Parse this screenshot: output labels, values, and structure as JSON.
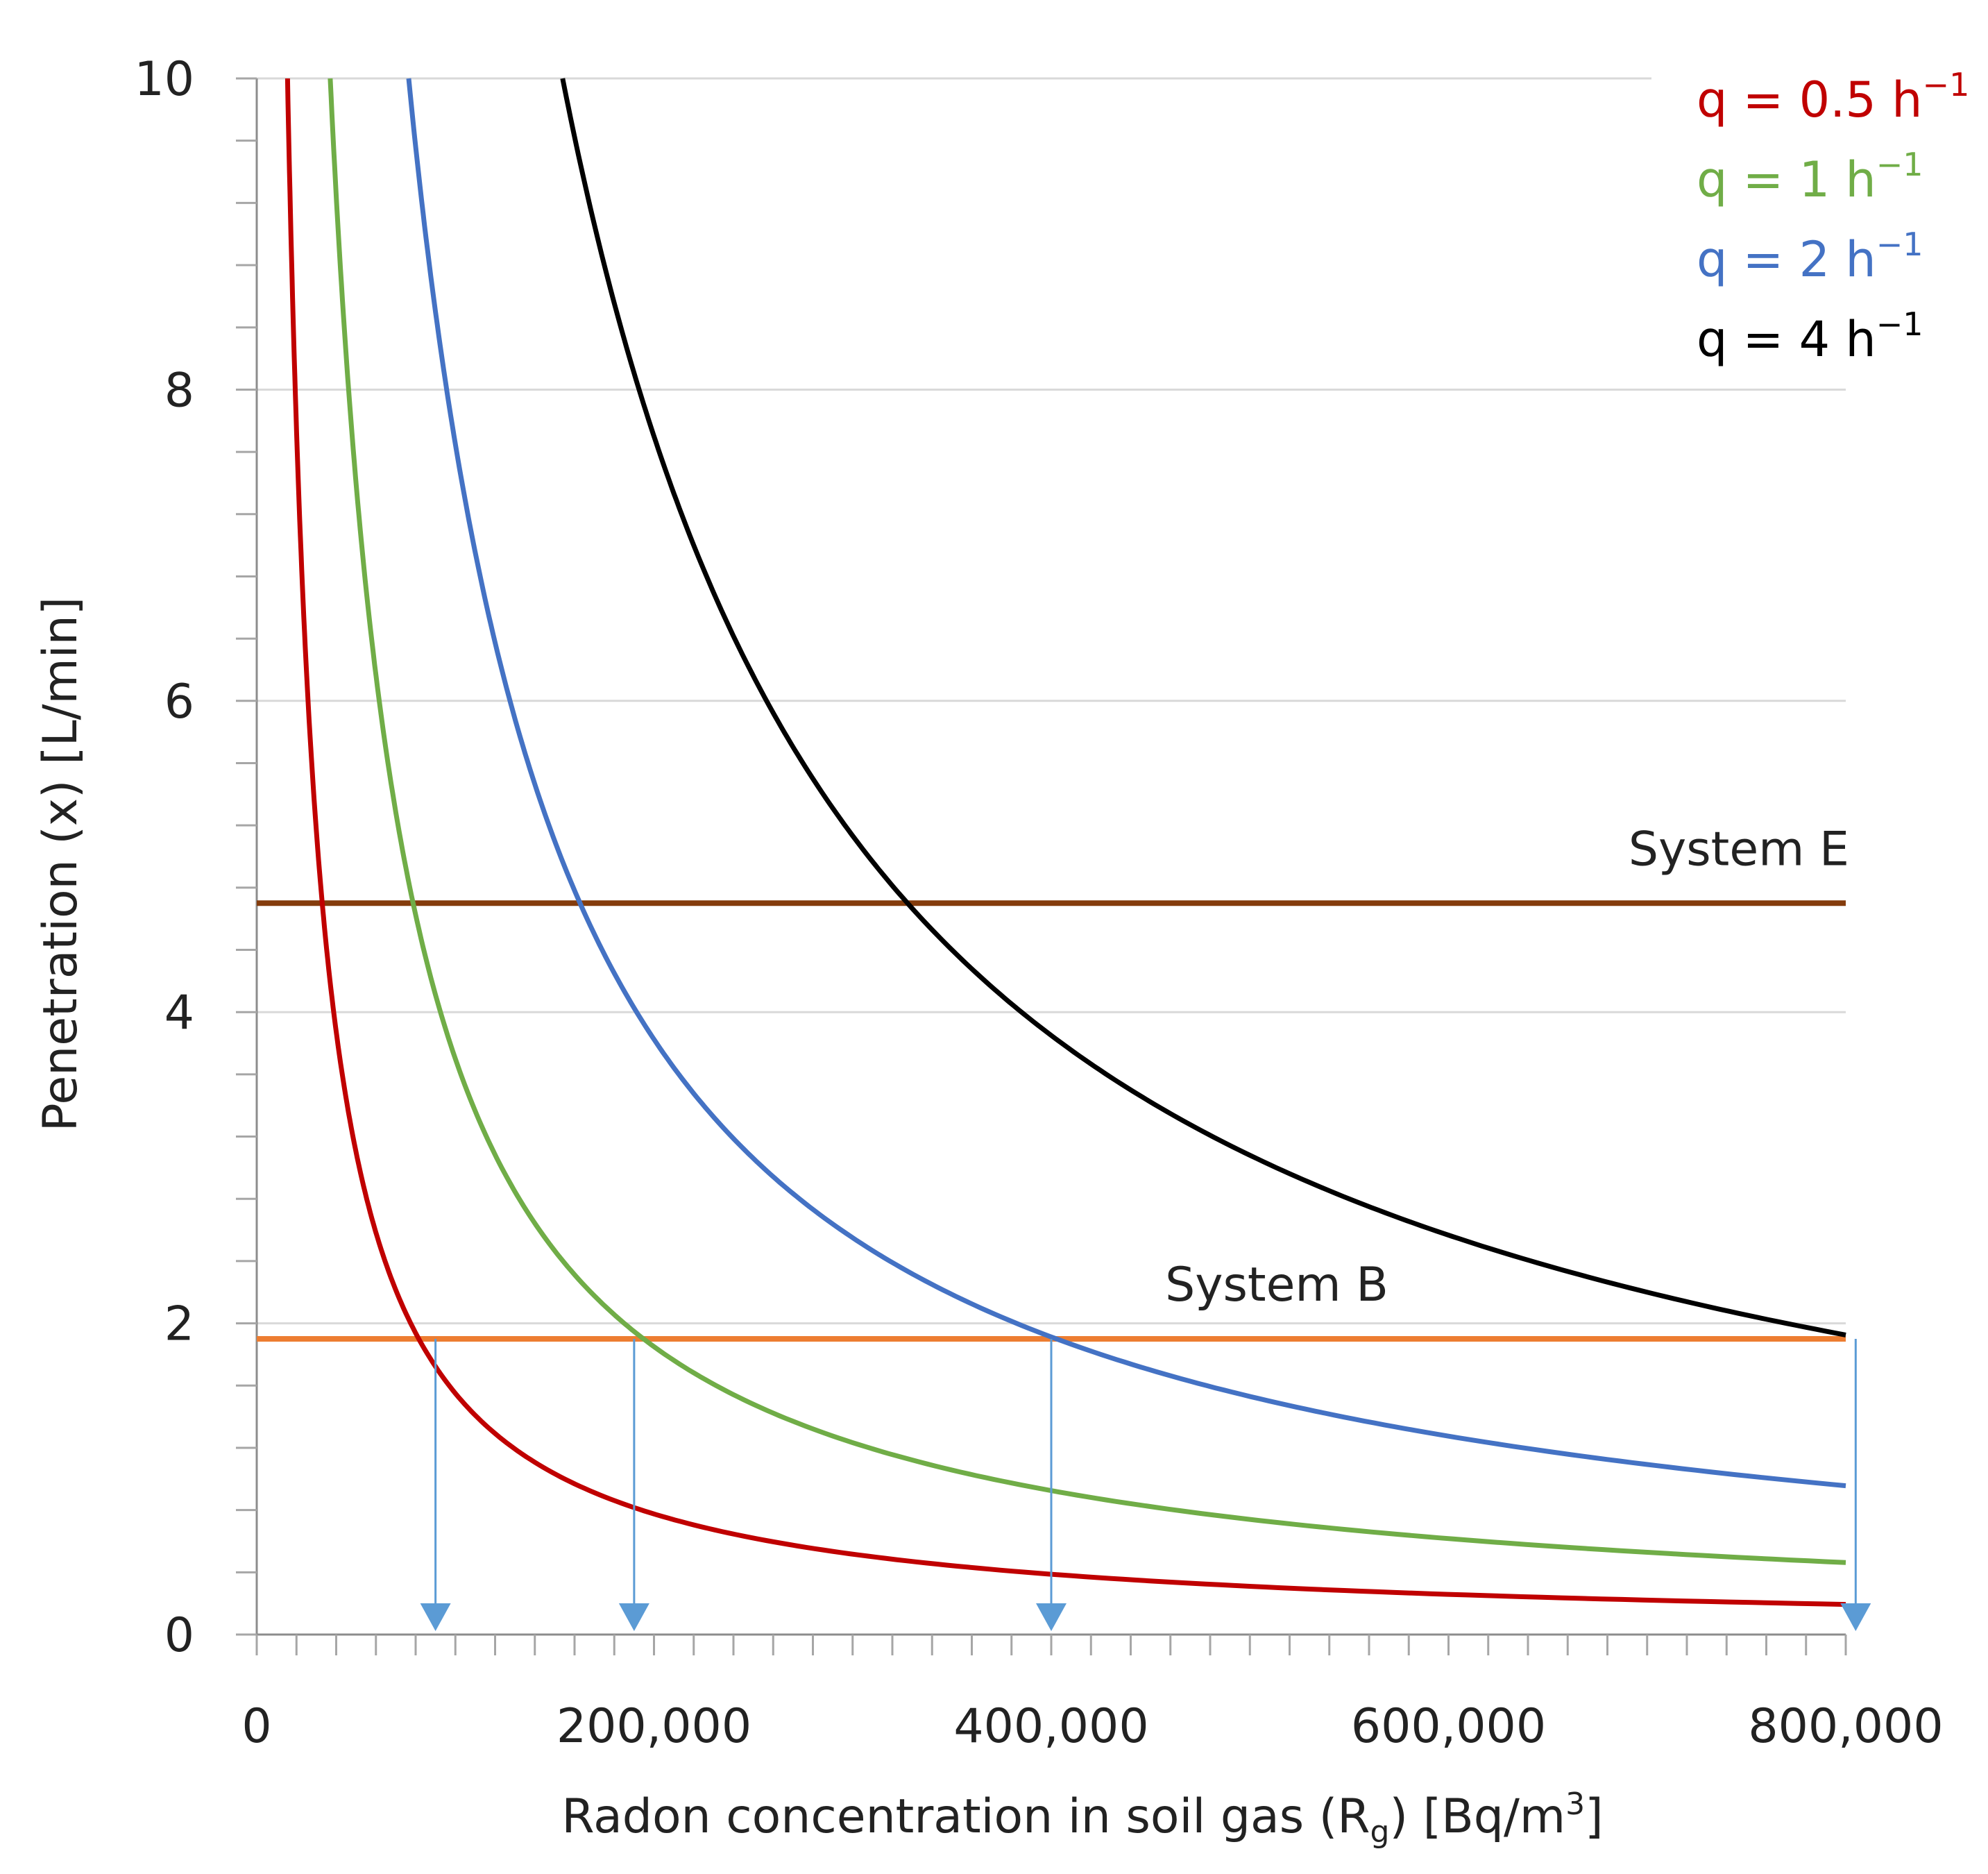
{
  "chart_data": {
    "type": "line",
    "title": "",
    "xlabel": "Radon concentration in soil gas (R",
    "xlabel_sub": "g",
    "xlabel_tail": ") [Bq/m",
    "xlabel_sup": "3",
    "xlabel_end": "]",
    "ylabel": "Penetration (x) [L/min]",
    "xlim": [
      0,
      800000
    ],
    "ylim": [
      0,
      10
    ],
    "x_ticks": [
      0,
      200000,
      400000,
      600000,
      800000
    ],
    "x_tick_labels": [
      "0",
      "200,000",
      "400,000",
      "600,000",
      "800,000"
    ],
    "y_ticks": [
      0,
      2,
      4,
      6,
      8,
      10
    ],
    "y_tick_labels": [
      "0",
      "2",
      "4",
      "6",
      "8",
      "10"
    ],
    "grid": true,
    "legend_position": "top-right",
    "series": [
      {
        "name": "q = 0.5 h",
        "unit_sup": "−1",
        "color": "#c00000",
        "k": 155000,
        "x": [
          15500,
          20000,
          31000,
          40000,
          60000,
          80000,
          100000,
          150000,
          200000,
          300000,
          400000,
          600000,
          800000
        ],
        "values": [
          10,
          7.75,
          5.0,
          3.88,
          2.58,
          1.94,
          1.55,
          1.03,
          0.78,
          0.52,
          0.39,
          0.26,
          0.19
        ]
      },
      {
        "name": "q = 1 h",
        "unit_sup": "−1",
        "color": "#70ad47",
        "k": 370000,
        "x": [
          37000,
          50000,
          75000,
          100000,
          150000,
          200000,
          300000,
          400000,
          600000,
          800000
        ],
        "values": [
          10,
          7.4,
          4.93,
          3.7,
          2.47,
          1.85,
          1.23,
          0.93,
          0.62,
          0.46
        ]
      },
      {
        "name": "q = 2 h",
        "unit_sup": "−1",
        "color": "#4472c4",
        "k": 765000,
        "x": [
          76500,
          100000,
          150000,
          200000,
          300000,
          400000,
          600000,
          800000
        ],
        "values": [
          10,
          7.65,
          5.1,
          3.83,
          2.55,
          1.91,
          1.28,
          0.96
        ]
      },
      {
        "name": "q = 4 h",
        "unit_sup": "−1",
        "color": "#000000",
        "k": 1540000,
        "x": [
          154000,
          200000,
          300000,
          400000,
          500000,
          600000,
          700000,
          800000
        ],
        "values": [
          10,
          7.7,
          5.13,
          3.85,
          3.08,
          2.57,
          2.2,
          1.93
        ]
      }
    ],
    "reference_lines": [
      {
        "label": "System E",
        "y": 4.7,
        "color": "#843c0c"
      },
      {
        "label": "System B",
        "y": 1.9,
        "color": "#ed7d31"
      }
    ],
    "arrows": {
      "color": "#5b9bd5",
      "from_y": 1.9,
      "x": [
        90000,
        190000,
        400000,
        805000
      ]
    }
  }
}
